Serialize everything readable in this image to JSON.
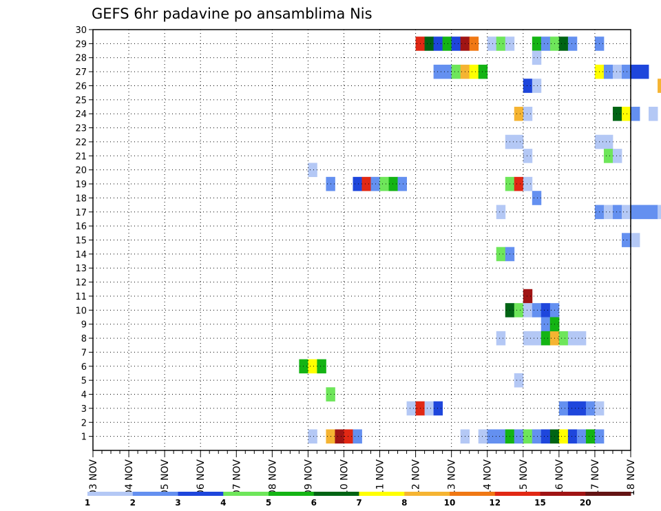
{
  "chart_data": {
    "type": "heatmap",
    "title": "GEFS 6hr padavine po ansamblima Nis",
    "x_tick_labels": [
      "03 NOV",
      "04 NOV",
      "05 NOV",
      "06 NOV",
      "07 NOV",
      "08 NOV",
      "09 NOV",
      "10 NOV",
      "11 NOV",
      "12 NOV",
      "13 NOV",
      "14 NOV",
      "15 NOV",
      "16 NOV",
      "17 NOV",
      "18 NOV"
    ],
    "x_range_days": [
      0,
      15
    ],
    "y_ticks": [
      1,
      2,
      3,
      4,
      5,
      6,
      7,
      8,
      9,
      10,
      11,
      12,
      13,
      14,
      15,
      16,
      17,
      18,
      19,
      20,
      21,
      22,
      23,
      24,
      25,
      26,
      27,
      28,
      29,
      30
    ],
    "y_range": [
      0,
      30
    ],
    "grid": true,
    "colorbar": {
      "labels": [
        "1",
        "2",
        "3",
        "4",
        "5",
        "6",
        "7",
        "8",
        "10",
        "12",
        "15",
        "20"
      ],
      "colors": [
        "#b4c8f5",
        "#6490f0",
        "#1e46dc",
        "#6ee65a",
        "#14b414",
        "#006414",
        "#ffff00",
        "#f5b432",
        "#f07814",
        "#e12814",
        "#a01414",
        "#641414"
      ]
    },
    "cells": [
      [
        0,
        9.0,
        29,
        10
      ],
      [
        0,
        9.25,
        29,
        6
      ],
      [
        0,
        9.5,
        29,
        3
      ],
      [
        0,
        9.75,
        29,
        5
      ],
      [
        0,
        10.0,
        29,
        3
      ],
      [
        0,
        10.25,
        29,
        11
      ],
      [
        0,
        10.5,
        29,
        9
      ],
      [
        0,
        11.0,
        29,
        1
      ],
      [
        0,
        11.25,
        29,
        4
      ],
      [
        0,
        11.5,
        29,
        1
      ],
      [
        0,
        12.25,
        29,
        5
      ],
      [
        0,
        12.5,
        29,
        2
      ],
      [
        0,
        12.75,
        29,
        4
      ],
      [
        0,
        13.0,
        29,
        6
      ],
      [
        0,
        13.25,
        29,
        2
      ],
      [
        0,
        14.0,
        29,
        2
      ],
      [
        0,
        12.25,
        28,
        1
      ],
      [
        0,
        9.5,
        27,
        2
      ],
      [
        0,
        9.75,
        27,
        2
      ],
      [
        0,
        10.0,
        27,
        4
      ],
      [
        0,
        10.25,
        27,
        8
      ],
      [
        0,
        10.5,
        27,
        7
      ],
      [
        0,
        10.75,
        27,
        5
      ],
      [
        0,
        14.0,
        27,
        7
      ],
      [
        0,
        14.25,
        27,
        2
      ],
      [
        0,
        14.5,
        27,
        1
      ],
      [
        0,
        14.75,
        27,
        2
      ],
      [
        0,
        15.0,
        27,
        3
      ],
      [
        0,
        15.25,
        27,
        3
      ],
      [
        0,
        12.0,
        26,
        3
      ],
      [
        0,
        12.25,
        26,
        1
      ],
      [
        0,
        15.75,
        26,
        8
      ],
      [
        0,
        11.75,
        24,
        8
      ],
      [
        0,
        12.0,
        24,
        1
      ],
      [
        0,
        14.5,
        24,
        6
      ],
      [
        0,
        14.75,
        24,
        7
      ],
      [
        0,
        15.0,
        24,
        2
      ],
      [
        0,
        15.5,
        24,
        1
      ],
      [
        0,
        11.5,
        22,
        1
      ],
      [
        0,
        11.75,
        22,
        1
      ],
      [
        0,
        14.0,
        22,
        1
      ],
      [
        0,
        14.25,
        22,
        1
      ],
      [
        0,
        12.0,
        21,
        1
      ],
      [
        0,
        14.25,
        21,
        4
      ],
      [
        0,
        14.5,
        21,
        1
      ],
      [
        0,
        6.0,
        20,
        1
      ],
      [
        0,
        6.5,
        19,
        2
      ],
      [
        0,
        7.25,
        19,
        3
      ],
      [
        0,
        7.5,
        19,
        10
      ],
      [
        0,
        7.75,
        19,
        2
      ],
      [
        0,
        8.0,
        19,
        4
      ],
      [
        0,
        8.25,
        19,
        5
      ],
      [
        0,
        8.5,
        19,
        2
      ],
      [
        0,
        11.5,
        19,
        4
      ],
      [
        0,
        11.75,
        19,
        10
      ],
      [
        0,
        12.0,
        19,
        1
      ],
      [
        0,
        12.25,
        18,
        2
      ],
      [
        0,
        11.25,
        17,
        1
      ],
      [
        0,
        14.0,
        17,
        2
      ],
      [
        0,
        14.25,
        17,
        1
      ],
      [
        0,
        14.5,
        17,
        2
      ],
      [
        0,
        14.75,
        17,
        1
      ],
      [
        0,
        15.0,
        17,
        2
      ],
      [
        0,
        15.25,
        17,
        2
      ],
      [
        0,
        15.5,
        17,
        2
      ],
      [
        0,
        15.75,
        17,
        1
      ],
      [
        0,
        14.75,
        15,
        2
      ],
      [
        0,
        15.0,
        15,
        1
      ],
      [
        0,
        11.25,
        14,
        4
      ],
      [
        0,
        11.5,
        14,
        2
      ],
      [
        0,
        12.0,
        11,
        11
      ],
      [
        0,
        11.5,
        10,
        6
      ],
      [
        0,
        11.75,
        10,
        4
      ],
      [
        0,
        12.0,
        10,
        1
      ],
      [
        0,
        12.25,
        10,
        2
      ],
      [
        0,
        12.5,
        10,
        3
      ],
      [
        0,
        12.75,
        10,
        2
      ],
      [
        0,
        12.5,
        9,
        2
      ],
      [
        0,
        12.75,
        9,
        5
      ],
      [
        0,
        12.0,
        8,
        1
      ],
      [
        0,
        12.25,
        8,
        1
      ],
      [
        0,
        12.5,
        8,
        5
      ],
      [
        0,
        12.75,
        8,
        8
      ],
      [
        0,
        13.0,
        8,
        4
      ],
      [
        0,
        13.25,
        8,
        1
      ],
      [
        0,
        13.5,
        8,
        1
      ],
      [
        0,
        11.25,
        8,
        1
      ],
      [
        0,
        12.75,
        9,
        5
      ],
      [
        0,
        5.75,
        6,
        5
      ],
      [
        0,
        6.0,
        6,
        7
      ],
      [
        0,
        6.25,
        6,
        5
      ],
      [
        0,
        11.75,
        5,
        1
      ],
      [
        0,
        6.5,
        4,
        4
      ],
      [
        0,
        8.75,
        3,
        1
      ],
      [
        0,
        9.0,
        3,
        10
      ],
      [
        0,
        9.25,
        3,
        1
      ],
      [
        0,
        9.5,
        3,
        3
      ],
      [
        0,
        13.0,
        3,
        2
      ],
      [
        0,
        13.25,
        3,
        3
      ],
      [
        0,
        13.5,
        3,
        3
      ],
      [
        0,
        13.75,
        3,
        2
      ],
      [
        0,
        14.0,
        3,
        1
      ],
      [
        0,
        6.0,
        1,
        1
      ],
      [
        0,
        6.5,
        1,
        8
      ],
      [
        0,
        6.75,
        1,
        11
      ],
      [
        0,
        7.0,
        1,
        10
      ],
      [
        0,
        7.25,
        1,
        2
      ],
      [
        0,
        10.25,
        1,
        1
      ],
      [
        0,
        10.75,
        1,
        1
      ],
      [
        0,
        11.0,
        1,
        2
      ],
      [
        0,
        11.25,
        1,
        2
      ],
      [
        0,
        11.5,
        1,
        5
      ],
      [
        0,
        11.75,
        1,
        2
      ],
      [
        0,
        12.0,
        1,
        4
      ],
      [
        0,
        12.25,
        1,
        2
      ],
      [
        0,
        12.5,
        1,
        3
      ],
      [
        0,
        12.75,
        1,
        6
      ],
      [
        0,
        13.0,
        1,
        7
      ],
      [
        0,
        13.25,
        1,
        3
      ],
      [
        0,
        13.5,
        1,
        2
      ],
      [
        0,
        13.75,
        1,
        5
      ],
      [
        0,
        14.0,
        1,
        2
      ]
    ]
  }
}
